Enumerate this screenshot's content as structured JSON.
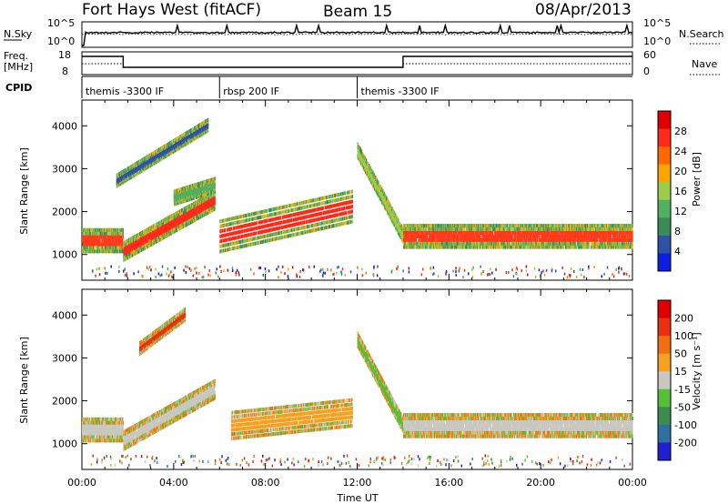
{
  "header": {
    "radar": "Fort Hays West (fitACF)",
    "beam": "Beam 15",
    "date": "08/Apr/2013"
  },
  "sky_panel": {
    "left_label": "N.Sky",
    "left_ticks": [
      "10^5",
      "10^0"
    ],
    "right_label": "N.Search",
    "right_ticks": [
      "10^5",
      "10^0"
    ]
  },
  "freq_panel": {
    "left_label_1": "Freq.",
    "left_label_2": "[MHz]",
    "left_ticks": [
      "18",
      "8"
    ],
    "right_label": "Nave",
    "right_ticks": [
      "60",
      "0"
    ]
  },
  "cpid": {
    "label": "CPID",
    "segments": [
      {
        "name": "themis -3300 IF",
        "start": 0,
        "end": 6
      },
      {
        "name": "rbsp 200 IF",
        "start": 6,
        "end": 12
      },
      {
        "name": "themis -3300 IF",
        "start": 12,
        "end": 24
      }
    ]
  },
  "colors": {
    "power_scale": [
      "#0a1fe0",
      "#2d52a8",
      "#3a8a5a",
      "#50b060",
      "#9acd4a",
      "#ffa500",
      "#ff6a00",
      "#ff2a1a",
      "#e00000"
    ],
    "velocity_scale": [
      "#2020d0",
      "#3070a0",
      "#3c8c50",
      "#55c035",
      "#c8c8c0",
      "#f5a020",
      "#f07010",
      "#e83010",
      "#e00000"
    ]
  },
  "chart_data": [
    {
      "type": "heatmap",
      "panel": "power",
      "ylabel": "Slant Range [km]",
      "xlabel": "",
      "ylim": [
        400,
        4600
      ],
      "xlim": [
        0,
        24
      ],
      "y_ticks": [
        "4000",
        "3000",
        "2000",
        "1000"
      ],
      "colorbar": {
        "label": "Power [dB]",
        "ticks": [
          "28",
          "24",
          "20",
          "16",
          "12",
          "8",
          "4"
        ]
      },
      "bands": [
        {
          "t0": 0.0,
          "t1": 1.8,
          "r_center_start": 1300,
          "r_center_end": 1300,
          "thickness": 500,
          "peak_color": "#ff3a1a"
        },
        {
          "t0": 1.8,
          "t1": 5.8,
          "r_center_start": 1050,
          "r_center_end": 2250,
          "thickness": 400,
          "peak_color": "#ff2a1a"
        },
        {
          "t0": 4.0,
          "t1": 5.8,
          "r_center_start": 2300,
          "r_center_end": 2600,
          "thickness": 300,
          "peak_color": "#50b060"
        },
        {
          "t0": 1.5,
          "t1": 5.5,
          "r_center_start": 2700,
          "r_center_end": 4000,
          "thickness": 250,
          "peak_color": "#2d52a8"
        },
        {
          "t0": 6.0,
          "t1": 11.8,
          "r_center_start": 1400,
          "r_center_end": 2100,
          "thickness": 700,
          "peak_color": "#ff2a1a"
        },
        {
          "t0": 12.0,
          "t1": 14.0,
          "r_center_start": 3400,
          "r_center_end": 1400,
          "thickness": 300,
          "peak_color": "#9acd4a"
        },
        {
          "t0": 14.0,
          "t1": 24.0,
          "r_center_start": 1400,
          "r_center_end": 1400,
          "thickness": 500,
          "peak_color": "#ff3a1a"
        }
      ]
    },
    {
      "type": "heatmap",
      "panel": "velocity",
      "ylabel": "Slant Range [km]",
      "xlabel": "Time UT",
      "ylim": [
        400,
        4600
      ],
      "xlim": [
        0,
        24
      ],
      "x_ticks": [
        "00:00",
        "04:00",
        "08:00",
        "12:00",
        "16:00",
        "20:00",
        "00:00"
      ],
      "y_ticks": [
        "4000",
        "3000",
        "2000",
        "1000"
      ],
      "colorbar": {
        "label": "Velocity [m s⁻¹]",
        "ticks": [
          "200",
          "100",
          "50",
          "15",
          "-15",
          "-50",
          "-100",
          "-200"
        ]
      },
      "bands": [
        {
          "t0": 0.0,
          "t1": 1.8,
          "r_center_start": 1300,
          "r_center_end": 1300,
          "thickness": 500,
          "peak_color": "#c8c8c0"
        },
        {
          "t0": 1.8,
          "t1": 5.8,
          "r_center_start": 1050,
          "r_center_end": 2250,
          "thickness": 400,
          "peak_color": "#c8c8c0"
        },
        {
          "t0": 2.5,
          "t1": 4.5,
          "r_center_start": 3200,
          "r_center_end": 4000,
          "thickness": 250,
          "peak_color": "#e83010"
        },
        {
          "t0": 6.5,
          "t1": 11.8,
          "r_center_start": 1400,
          "r_center_end": 1700,
          "thickness": 600,
          "peak_color": "#f5a020"
        },
        {
          "t0": 12.0,
          "t1": 14.0,
          "r_center_start": 3400,
          "r_center_end": 1400,
          "thickness": 300,
          "peak_color": "#55c035"
        },
        {
          "t0": 14.0,
          "t1": 24.0,
          "r_center_start": 1400,
          "r_center_end": 1400,
          "thickness": 500,
          "peak_color": "#c8c8c0"
        }
      ]
    }
  ]
}
